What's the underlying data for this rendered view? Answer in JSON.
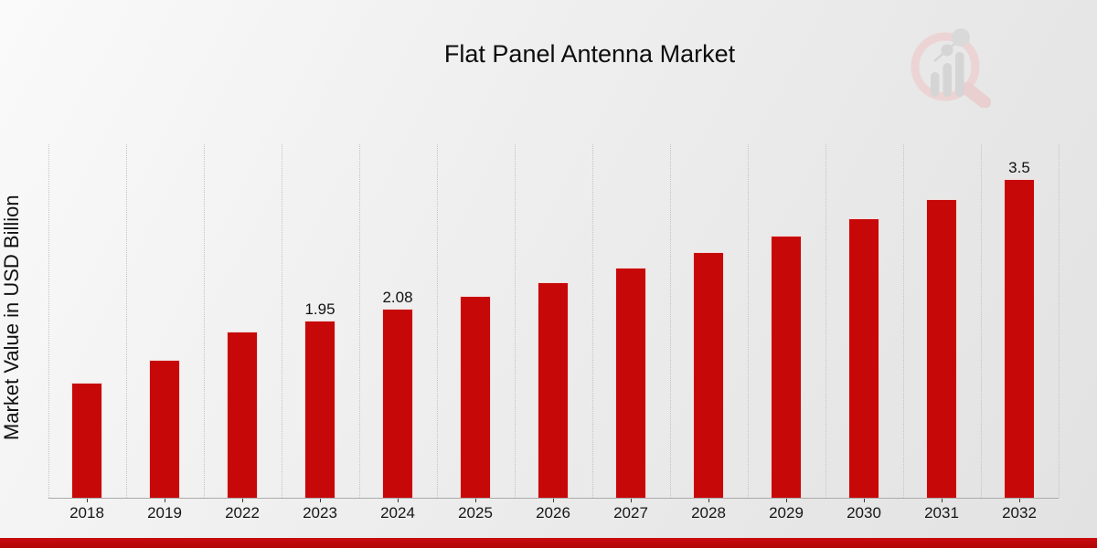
{
  "chart_data": {
    "type": "bar",
    "title": "Flat Panel Antenna Market",
    "ylabel": "Market Value in USD Billion",
    "xlabel": "",
    "categories": [
      "2018",
      "2019",
      "2022",
      "2023",
      "2024",
      "2025",
      "2026",
      "2027",
      "2028",
      "2029",
      "2030",
      "2031",
      "2032"
    ],
    "values": [
      1.26,
      1.51,
      1.83,
      1.95,
      2.08,
      2.22,
      2.37,
      2.53,
      2.7,
      2.88,
      3.07,
      3.28,
      3.5
    ],
    "data_labels": [
      "",
      "",
      "",
      "1.95",
      "2.08",
      "",
      "",
      "",
      "",
      "",
      "",
      "",
      "3.5"
    ],
    "ylim": [
      0,
      3.88
    ],
    "grid": "vertical dotted column separators",
    "legend_position": "none",
    "bar_color": "#c70808",
    "bar_edge_color": "#f3dcdc",
    "accent_strip_color": "#c00a0c"
  },
  "logo": {
    "name": "magnifier-bar-chart-watermark",
    "ring_color": "#ecd4d4",
    "bars_color": "#d5d5d5"
  }
}
